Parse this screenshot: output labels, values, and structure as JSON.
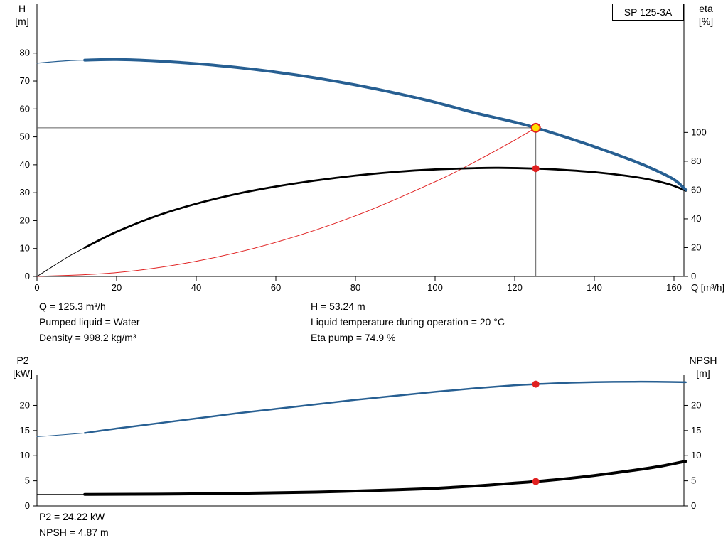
{
  "pump_model": "SP 125-3A",
  "colors": {
    "curve_blue": "#275f92",
    "curve_black": "#000000",
    "curve_red": "#e02020",
    "duty_yellow": "#ffe000",
    "ref_gray": "#606060",
    "axis": "#000000"
  },
  "axes_labels": {
    "h_label": "H",
    "h_unit": "[m]",
    "eta_label": "eta",
    "eta_unit": "[%]",
    "q_label": "Q [m³/h]",
    "p2_label": "P2",
    "p2_unit": "[kW]",
    "npsh_label": "NPSH",
    "npsh_unit": "[m]"
  },
  "info": {
    "q": "Q = 125.3 m³/h",
    "pumped_liquid": "Pumped liquid = Water",
    "density": "Density = 998.2 kg/m³",
    "h": "H = 53.24 m",
    "liquid_temp": "Liquid temperature during operation = 20 °C",
    "eta_pump": "Eta pump = 74.9 %",
    "p2": "P2 = 24.22 kW",
    "npsh": "NPSH = 4.87 m"
  },
  "chart_data": [
    {
      "id": "qh",
      "type": "line",
      "title": "SP 125-3A pump curve (head and efficiency vs flow)",
      "x_axis": {
        "label": "Q [m³/h]",
        "min": 0,
        "max": 162.5,
        "ticks": [
          0,
          20,
          40,
          60,
          80,
          100,
          120,
          140,
          160
        ]
      },
      "y_left": {
        "label": "H [m]",
        "min": 0,
        "max": 97.5,
        "ticks": [
          0,
          10,
          20,
          30,
          40,
          50,
          60,
          70,
          80
        ]
      },
      "y_right": {
        "label": "eta [%]",
        "min": 0,
        "max": 189,
        "ticks": [
          0,
          20,
          40,
          60,
          80,
          100
        ]
      },
      "duty": {
        "Q": 125.3,
        "H": 53.24,
        "eta": 74.9
      },
      "series": [
        {
          "name": "system-curve",
          "axis": "left",
          "color": "curve_red",
          "width": 1,
          "points": [
            [
              0,
              0
            ],
            [
              20,
              1.36
            ],
            [
              40,
              5.43
            ],
            [
              60,
              12.21
            ],
            [
              80,
              21.71
            ],
            [
              100,
              33.92
            ],
            [
              110,
              41.04
            ],
            [
              120,
              48.84
            ],
            [
              125.3,
              53.24
            ]
          ]
        },
        {
          "name": "eta-thin",
          "axis": "right",
          "color": "curve_black",
          "width": 1,
          "points": [
            [
              0,
              0
            ],
            [
              4,
              7
            ],
            [
              8,
              14
            ],
            [
              12,
              20
            ]
          ]
        },
        {
          "name": "eta",
          "axis": "right",
          "color": "curve_black",
          "width": 2.8,
          "points": [
            [
              12,
              20
            ],
            [
              20,
              31
            ],
            [
              30,
              42
            ],
            [
              40,
              50.5
            ],
            [
              50,
              57.2
            ],
            [
              60,
              62.4
            ],
            [
              70,
              66.6
            ],
            [
              80,
              70
            ],
            [
              90,
              72.6
            ],
            [
              100,
              74.3
            ],
            [
              110,
              75.2
            ],
            [
              116,
              75.4
            ],
            [
              125.3,
              74.9
            ],
            [
              132,
              74
            ],
            [
              140,
              72.4
            ],
            [
              148,
              69.9
            ],
            [
              154,
              67.2
            ],
            [
              159,
              63.8
            ],
            [
              163,
              59.5
            ]
          ]
        },
        {
          "name": "head-thin",
          "axis": "left",
          "color": "curve_blue",
          "width": 1.2,
          "points": [
            [
              0,
              76.4
            ],
            [
              4,
              76.9
            ],
            [
              8,
              77.3
            ],
            [
              12,
              77.5
            ]
          ]
        },
        {
          "name": "head",
          "axis": "left",
          "color": "curve_blue",
          "width": 4,
          "points": [
            [
              12,
              77.5
            ],
            [
              20,
              77.7
            ],
            [
              30,
              77.2
            ],
            [
              40,
              76.2
            ],
            [
              50,
              74.9
            ],
            [
              60,
              73.2
            ],
            [
              70,
              71.1
            ],
            [
              80,
              68.6
            ],
            [
              90,
              65.7
            ],
            [
              100,
              62.4
            ],
            [
              110,
              58.6
            ],
            [
              120,
              55.3
            ],
            [
              125.3,
              53.24
            ],
            [
              130,
              51.2
            ],
            [
              140,
              46.5
            ],
            [
              150,
              41.3
            ],
            [
              155,
              38.3
            ],
            [
              160,
              34.7
            ],
            [
              163,
              31
            ]
          ]
        }
      ],
      "ref_lines": [
        {
          "name": "duty-head-line",
          "type": "h",
          "axis": "left",
          "value": 53.24,
          "from": 0,
          "to": 125.3,
          "color": "ref_gray"
        },
        {
          "name": "duty-flow-line",
          "type": "v",
          "axis": "left",
          "x": 125.3,
          "from": 0,
          "to": 53.24,
          "color": "ref_gray"
        }
      ],
      "markers": [
        {
          "name": "duty-point-eta",
          "axis": "right",
          "x": 125.3,
          "y": 74.9,
          "r": 5,
          "fill": "curve_red"
        },
        {
          "name": "duty-point-head",
          "axis": "left",
          "x": 125.3,
          "y": 53.24,
          "r": 6,
          "fill": "duty_yellow",
          "stroke": "curve_red"
        }
      ]
    },
    {
      "id": "p2npsh",
      "type": "line",
      "title": "Power P2 and NPSH vs flow",
      "x_axis": {
        "label": "",
        "min": 0,
        "max": 162.5,
        "ticks": []
      },
      "y_left": {
        "label": "P2 [kW]",
        "min": 0,
        "max": 26,
        "ticks": [
          0,
          5,
          10,
          15,
          20
        ]
      },
      "y_right": {
        "label": "NPSH [m]",
        "min": 0,
        "max": 26,
        "ticks": [
          0,
          5,
          10,
          15,
          20
        ]
      },
      "duty": {
        "Q": 125.3,
        "P2": 24.22,
        "NPSH": 4.87
      },
      "series": [
        {
          "name": "p2-thin",
          "axis": "left",
          "color": "curve_blue",
          "width": 1,
          "points": [
            [
              0,
              13.8
            ],
            [
              4,
              14
            ],
            [
              8,
              14.25
            ],
            [
              12,
              14.5
            ]
          ]
        },
        {
          "name": "p2",
          "axis": "left",
          "color": "curve_blue",
          "width": 2.5,
          "points": [
            [
              12,
              14.5
            ],
            [
              20,
              15.4
            ],
            [
              30,
              16.4
            ],
            [
              40,
              17.4
            ],
            [
              50,
              18.4
            ],
            [
              60,
              19.3
            ],
            [
              70,
              20.2
            ],
            [
              80,
              21.1
            ],
            [
              90,
              21.9
            ],
            [
              100,
              22.7
            ],
            [
              110,
              23.4
            ],
            [
              120,
              24
            ],
            [
              125.3,
              24.22
            ],
            [
              132,
              24.45
            ],
            [
              140,
              24.62
            ],
            [
              150,
              24.7
            ],
            [
              157,
              24.68
            ],
            [
              163,
              24.6
            ]
          ]
        },
        {
          "name": "npsh-thin",
          "axis": "right",
          "color": "curve_black",
          "width": 1,
          "points": [
            [
              0,
              2.3
            ],
            [
              12,
              2.3
            ]
          ]
        },
        {
          "name": "npsh",
          "axis": "right",
          "color": "curve_black",
          "width": 4,
          "points": [
            [
              12,
              2.3
            ],
            [
              30,
              2.35
            ],
            [
              50,
              2.5
            ],
            [
              70,
              2.75
            ],
            [
              90,
              3.2
            ],
            [
              100,
              3.5
            ],
            [
              110,
              3.95
            ],
            [
              120,
              4.55
            ],
            [
              125.3,
              4.87
            ],
            [
              132,
              5.35
            ],
            [
              140,
              6.05
            ],
            [
              150,
              7.1
            ],
            [
              157,
              7.95
            ],
            [
              163,
              8.9
            ]
          ]
        }
      ],
      "ref_lines": [],
      "markers": [
        {
          "name": "duty-point-p2",
          "axis": "left",
          "x": 125.3,
          "y": 24.22,
          "r": 5,
          "fill": "curve_red"
        },
        {
          "name": "duty-point-npsh",
          "axis": "right",
          "x": 125.3,
          "y": 4.87,
          "r": 5,
          "fill": "curve_red"
        }
      ]
    }
  ]
}
